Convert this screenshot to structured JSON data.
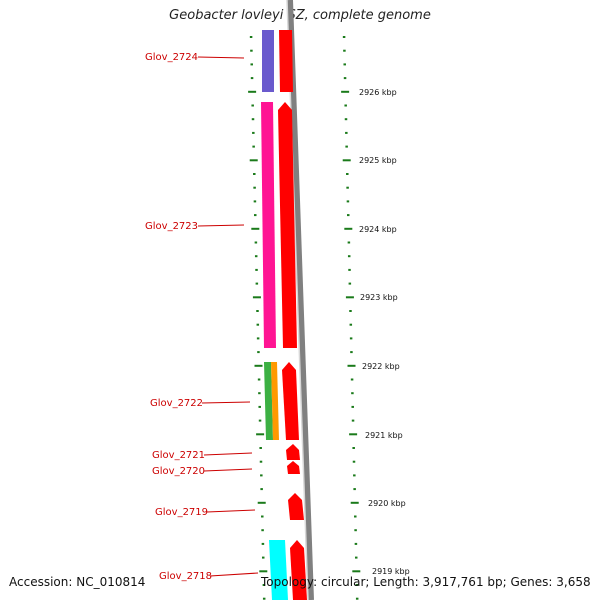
{
  "title": "Geobacter lovleyi SZ, complete genome",
  "genes": [
    {
      "label": "Glov_2724"
    },
    {
      "label": "Glov_2723"
    },
    {
      "label": "Glov_2722"
    },
    {
      "label": "Glov_2721"
    },
    {
      "label": "Glov_2720"
    },
    {
      "label": "Glov_2719"
    },
    {
      "label": "Glov_2718"
    }
  ],
  "kbp_labels": [
    "2926 kbp",
    "2925 kbp",
    "2924 kbp",
    "2923 kbp",
    "2922 kbp",
    "2921 kbp",
    "2920 kbp",
    "2919 kbp"
  ],
  "colors": {
    "gene_label": "#cc0000",
    "tick": "#1a7a1a",
    "arrow": "#ff0000",
    "backbone": "#808080"
  },
  "footer": {
    "accession": "Accession: NC_010814",
    "summary": "Topology: circular; Length: 3,917,761 bp; Genes: 3,658"
  }
}
